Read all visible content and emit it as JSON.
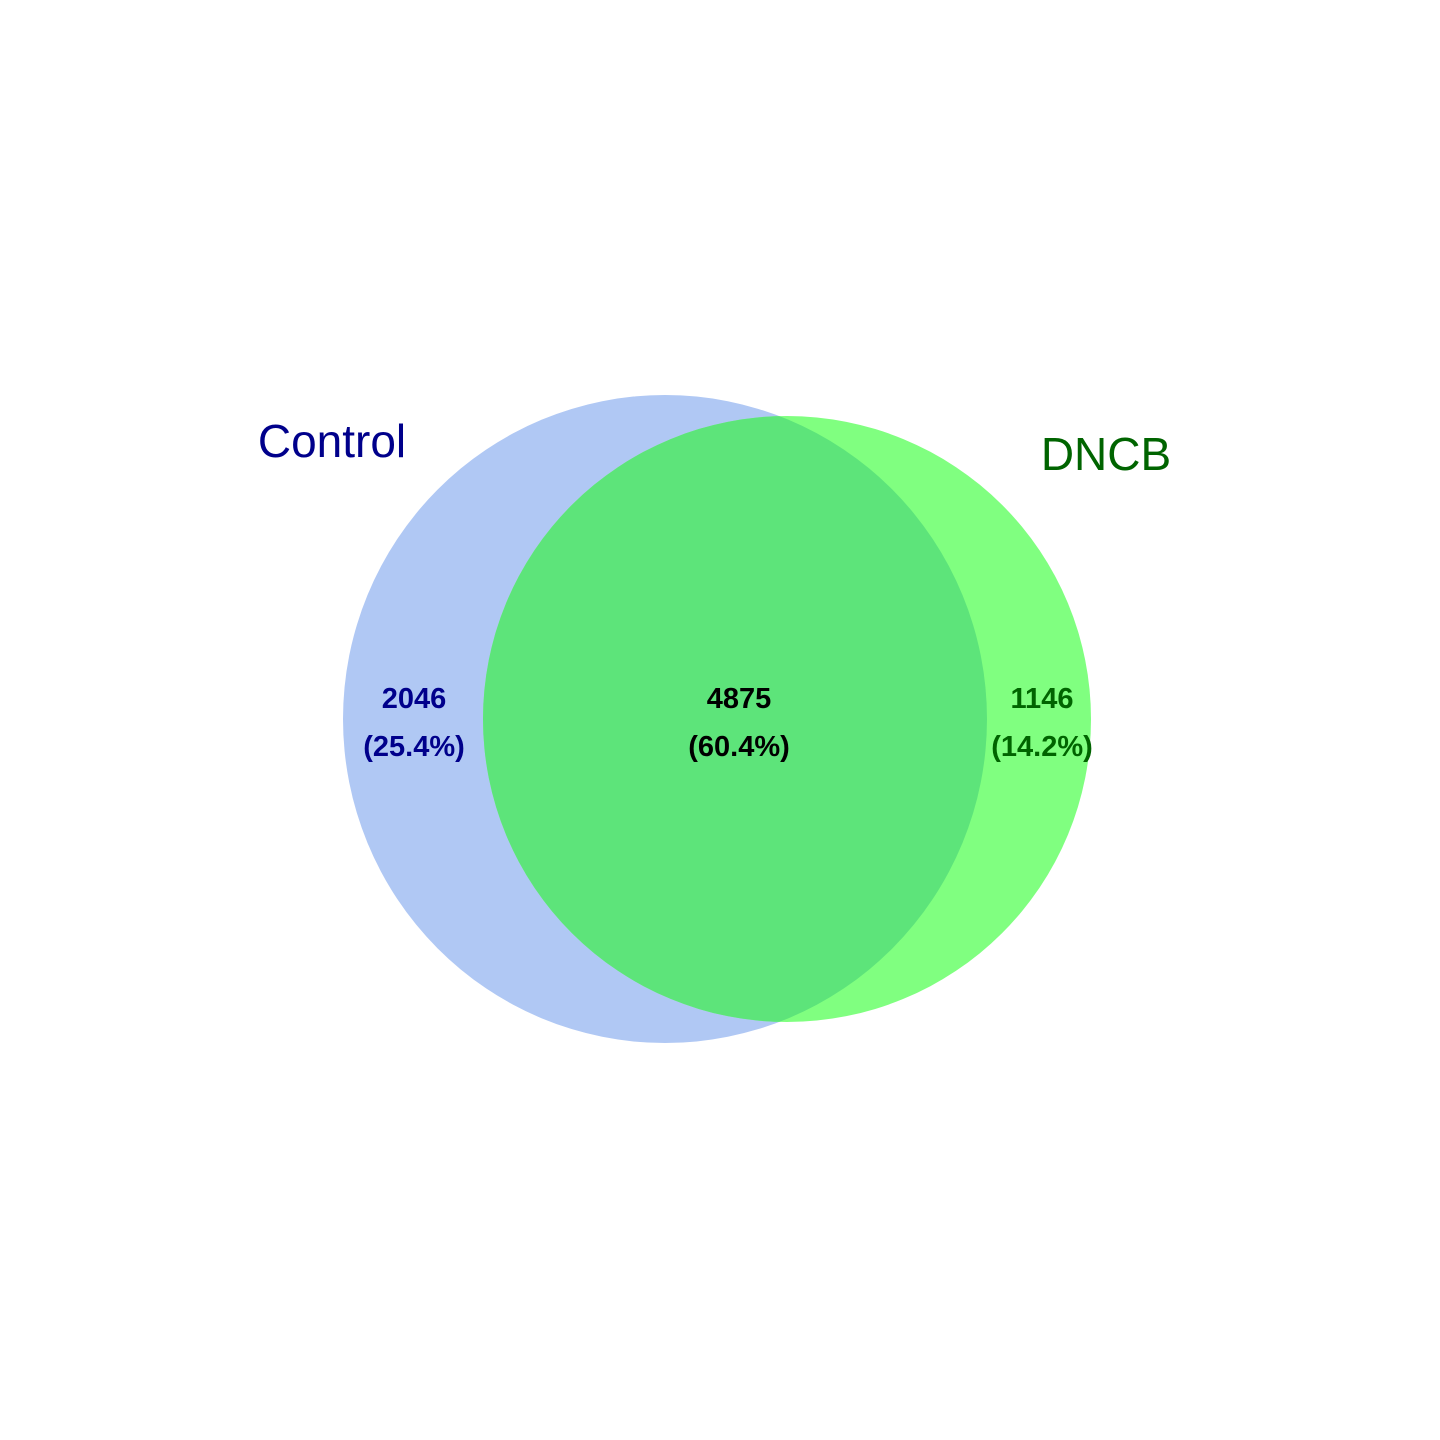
{
  "sets": [
    {
      "id": "control",
      "label": "Control",
      "fill": "#b0c8f4",
      "label_color": "#00008b"
    },
    {
      "id": "dncb",
      "label": "DNCB",
      "fill": "#80ff80",
      "label_color": "#006400"
    }
  ],
  "intersection_fill": "#5de47a",
  "regions": [
    {
      "id": "control-only",
      "count": "2046",
      "percent": "(25.4%)",
      "color": "#00008b"
    },
    {
      "id": "intersection",
      "count": "4875",
      "percent": "(60.4%)",
      "color": "#000000"
    },
    {
      "id": "dncb-only",
      "count": "1146",
      "percent": "(14.2%)",
      "color": "#006400"
    }
  ]
}
